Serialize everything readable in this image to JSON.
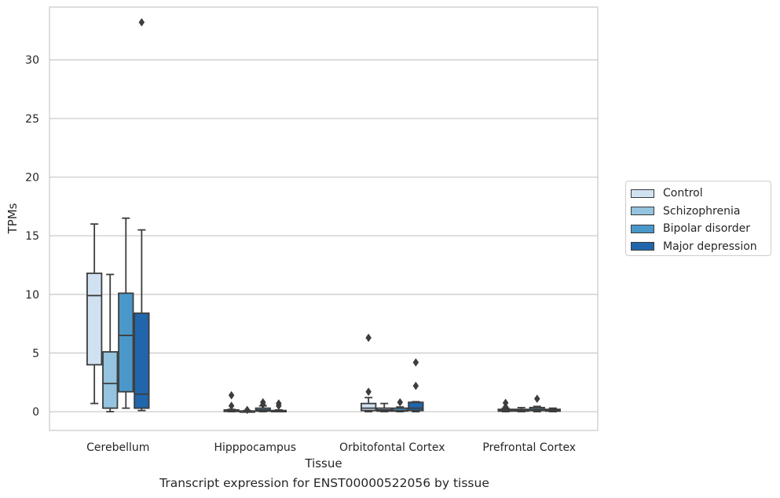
{
  "caption": "Transcript expression for ENST00000522056 by tissue",
  "chart_data": {
    "type": "box",
    "xlabel": "Tissue",
    "ylabel": "TPMs",
    "ylim": [
      -1.6,
      34.5
    ],
    "yticks": [
      0,
      5,
      10,
      15,
      20,
      25,
      30
    ],
    "grid": "horizontal",
    "legend_position": "right",
    "categories": [
      "Cerebellum",
      "Hipppocampus",
      "Orbitofontal Cortex",
      "Prefrontal Cortex"
    ],
    "series": [
      {
        "name": "Control",
        "color": "#d0e1f2",
        "boxes": [
          {
            "whislo": 0.7,
            "q1": 4.0,
            "med": 9.9,
            "q3": 11.8,
            "whishi": 16.0,
            "fliers": []
          },
          {
            "whislo": 0.0,
            "q1": 0.02,
            "med": 0.08,
            "q3": 0.15,
            "whishi": 0.2,
            "fliers": [
              0.5,
              1.4
            ]
          },
          {
            "whislo": 0.0,
            "q1": 0.1,
            "med": 0.3,
            "q3": 0.7,
            "whishi": 1.2,
            "fliers": [
              1.7,
              6.3
            ]
          },
          {
            "whislo": 0.0,
            "q1": 0.05,
            "med": 0.1,
            "q3": 0.2,
            "whishi": 0.3,
            "fliers": [
              0.4,
              0.75
            ]
          }
        ]
      },
      {
        "name": "Schizophrenia",
        "color": "#94c4df",
        "boxes": [
          {
            "whislo": 0.0,
            "q1": 0.3,
            "med": 2.4,
            "q3": 5.1,
            "whishi": 11.7,
            "fliers": []
          },
          {
            "whislo": 0.0,
            "q1": 0.0,
            "med": 0.03,
            "q3": 0.06,
            "whishi": 0.1,
            "fliers": [
              0.15
            ]
          },
          {
            "whislo": 0.0,
            "q1": 0.05,
            "med": 0.15,
            "q3": 0.3,
            "whishi": 0.7,
            "fliers": []
          },
          {
            "whislo": 0.0,
            "q1": 0.05,
            "med": 0.1,
            "q3": 0.2,
            "whishi": 0.35,
            "fliers": []
          }
        ]
      },
      {
        "name": "Bipolar disorder",
        "color": "#4a98c9",
        "boxes": [
          {
            "whislo": 0.3,
            "q1": 1.7,
            "med": 6.5,
            "q3": 10.1,
            "whishi": 16.5,
            "fliers": []
          },
          {
            "whislo": 0.0,
            "q1": 0.05,
            "med": 0.15,
            "q3": 0.3,
            "whishi": 0.5,
            "fliers": [
              0.6,
              0.8
            ]
          },
          {
            "whislo": 0.0,
            "q1": 0.05,
            "med": 0.1,
            "q3": 0.3,
            "whishi": 0.4,
            "fliers": [
              0.8
            ]
          },
          {
            "whislo": 0.0,
            "q1": 0.1,
            "med": 0.2,
            "q3": 0.35,
            "whishi": 0.45,
            "fliers": [
              1.1
            ]
          }
        ]
      },
      {
        "name": "Major depression",
        "color": "#2166ac",
        "boxes": [
          {
            "whislo": 0.1,
            "q1": 0.3,
            "med": 1.5,
            "q3": 8.4,
            "whishi": 15.5,
            "fliers": [
              33.2
            ]
          },
          {
            "whislo": 0.0,
            "q1": 0.02,
            "med": 0.05,
            "q3": 0.1,
            "whishi": 0.15,
            "fliers": [
              0.5,
              0.7
            ]
          },
          {
            "whislo": 0.0,
            "q1": 0.1,
            "med": 0.3,
            "q3": 0.8,
            "whishi": 0.85,
            "fliers": [
              2.2,
              4.2
            ]
          },
          {
            "whislo": 0.0,
            "q1": 0.05,
            "med": 0.1,
            "q3": 0.2,
            "whishi": 0.3,
            "fliers": []
          }
        ]
      }
    ]
  }
}
